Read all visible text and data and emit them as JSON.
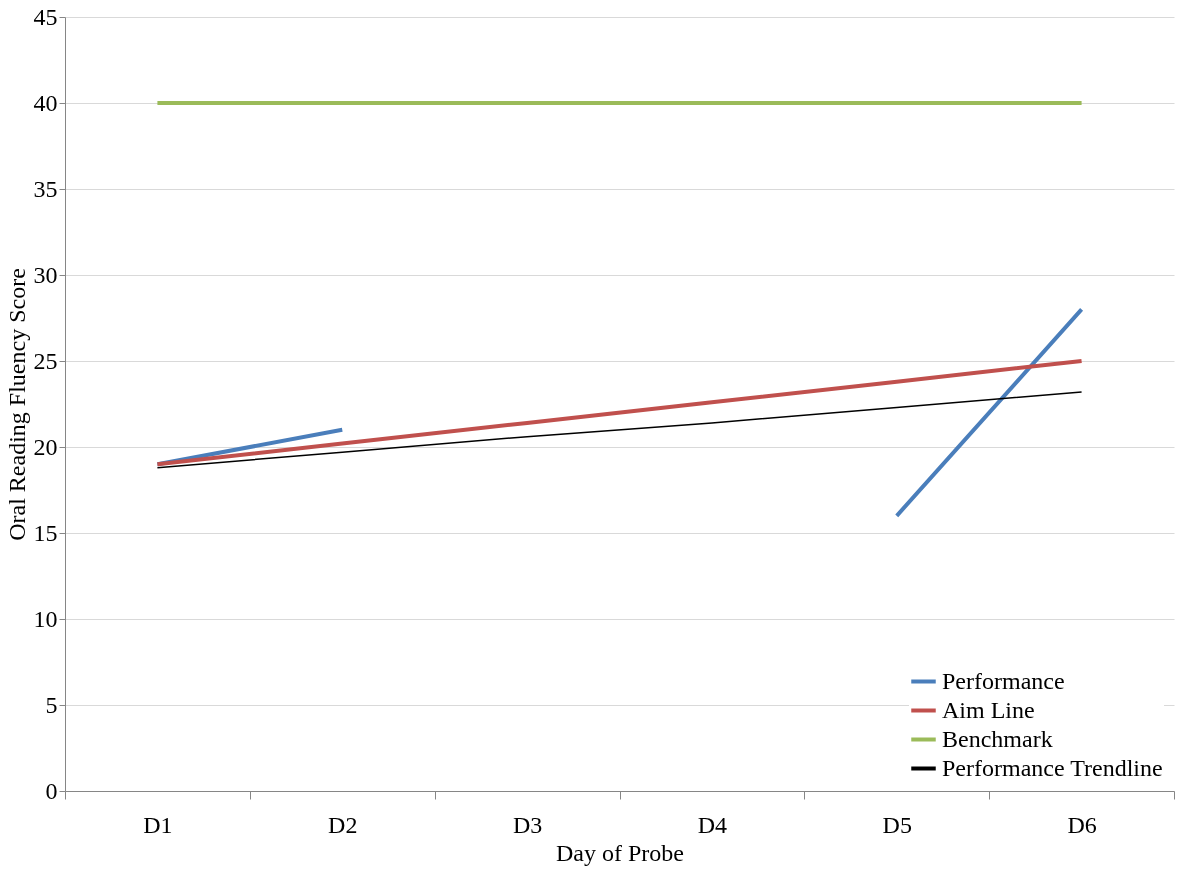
{
  "chart_data": {
    "type": "line",
    "xlabel": "Day of Probe",
    "ylabel": "Oral Reading Fluency Score",
    "categories": [
      "D1",
      "D2",
      "D3",
      "D4",
      "D5",
      "D6"
    ],
    "series": [
      {
        "name": "Performance",
        "color": "#4a7ebb",
        "values": [
          19,
          21,
          null,
          null,
          16,
          28
        ]
      },
      {
        "name": "Aim Line",
        "color": "#c0504d",
        "values": [
          19,
          20.2,
          21.4,
          22.6,
          23.8,
          25
        ]
      },
      {
        "name": "Benchmark",
        "color": "#9bbb59",
        "values": [
          40,
          40,
          40,
          40,
          40,
          40
        ]
      },
      {
        "name": "Performance Trendline",
        "color": "#000000",
        "values": [
          18.8,
          19.7,
          20.6,
          21.4,
          22.3,
          23.2
        ]
      }
    ],
    "ylim": [
      0,
      45
    ],
    "yticks": [
      0,
      5,
      10,
      15,
      20,
      25,
      30,
      35,
      40,
      45
    ],
    "grid": "y",
    "legend": "bottom right",
    "marker": "none",
    "line_style": "solid"
  }
}
